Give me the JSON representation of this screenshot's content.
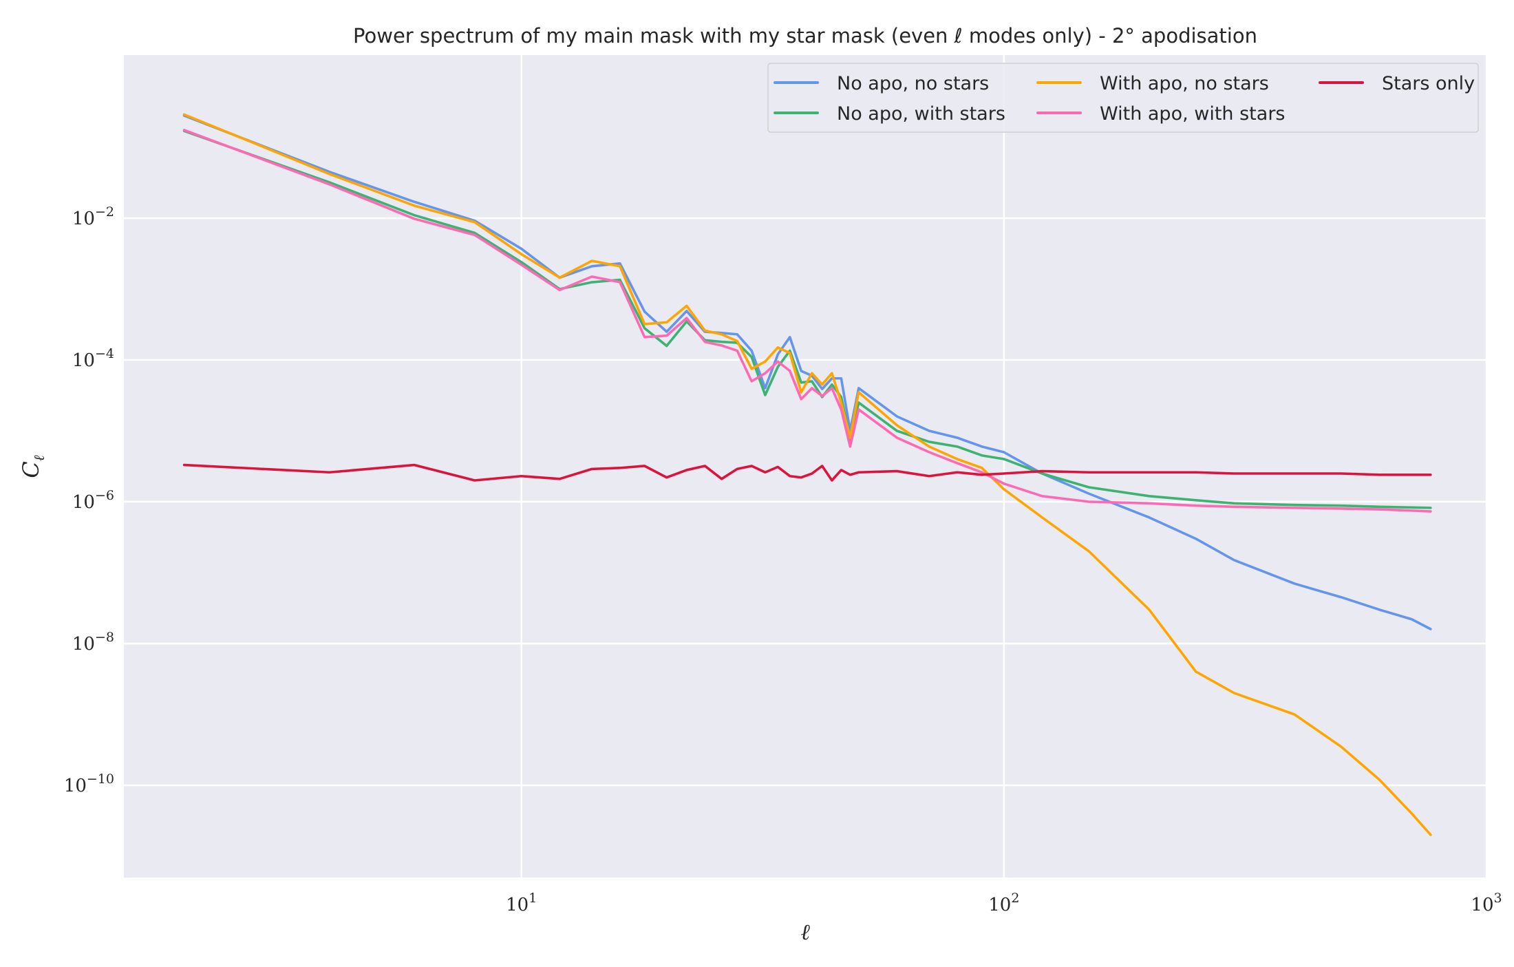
{
  "chart_data": {
    "type": "line",
    "title": "Power spectrum of my main mask with my star mask (even ℓ modes only) - 2° apodisation",
    "xlabel": "ℓ",
    "ylabel": "C_ℓ",
    "xscale": "log",
    "yscale": "log",
    "xlim": [
      1.5,
      1000
    ],
    "ylim": [
      5e-12,
      2
    ],
    "grid": true,
    "legend_position": "top-right",
    "x_ticks": [
      {
        "value": 10,
        "base": "10",
        "exp": "1"
      },
      {
        "value": 100,
        "base": "10",
        "exp": "2"
      },
      {
        "value": 1000,
        "base": "10",
        "exp": "3"
      }
    ],
    "y_ticks": [
      {
        "value": 0.01,
        "base": "10",
        "exp": "−2"
      },
      {
        "value": 0.0001,
        "base": "10",
        "exp": "−4"
      },
      {
        "value": 1e-06,
        "base": "10",
        "exp": "−6"
      },
      {
        "value": 1e-08,
        "base": "10",
        "exp": "−8"
      },
      {
        "value": 1e-10,
        "base": "10",
        "exp": "−10"
      }
    ],
    "x": [
      2,
      4,
      6,
      8,
      10,
      12,
      14,
      16,
      18,
      20,
      22,
      24,
      26,
      28,
      30,
      32,
      34,
      36,
      38,
      40,
      42,
      44,
      46,
      48,
      50,
      60,
      70,
      80,
      90,
      100,
      120,
      150,
      200,
      250,
      300,
      400,
      500,
      600,
      700,
      766
    ],
    "series": [
      {
        "name": "No apo, no stars",
        "color": "#6495ED",
        "values": [
          0.28,
          0.045,
          0.017,
          0.0092,
          0.0037,
          0.00145,
          0.0021,
          0.0023,
          0.00048,
          0.00025,
          0.00049,
          0.00025,
          0.00024,
          0.00023,
          0.000135,
          4e-05,
          0.00012,
          0.00021,
          7e-05,
          6e-05,
          3.9e-05,
          5.5e-05,
          5.5e-05,
          1e-05,
          4e-05,
          1.6e-05,
          1e-05,
          8e-06,
          6e-06,
          5e-06,
          2.5e-06,
          1.3e-06,
          6e-07,
          3e-07,
          1.5e-07,
          7e-08,
          4.5e-08,
          3e-08,
          2.2e-08,
          1.6e-08
        ]
      },
      {
        "name": "No apo, with stars",
        "color": "#3CB371",
        "values": [
          0.17,
          0.032,
          0.011,
          0.0062,
          0.0024,
          0.001,
          0.00125,
          0.00135,
          0.00028,
          0.000158,
          0.00035,
          0.00019,
          0.00018,
          0.000175,
          0.00011,
          3.2e-05,
          8e-05,
          0.000135,
          4.8e-05,
          5e-05,
          3e-05,
          4.5e-05,
          3e-05,
          7.5e-06,
          2.5e-05,
          1e-05,
          7e-06,
          6e-06,
          4.5e-06,
          4e-06,
          2.5e-06,
          1.6e-06,
          1.2e-06,
          1.05e-06,
          9.5e-07,
          9e-07,
          8.8e-07,
          8.5e-07,
          8.3e-07,
          8.2e-07
        ]
      },
      {
        "name": "With apo, no stars",
        "color": "#FFA500",
        "values": [
          0.29,
          0.042,
          0.015,
          0.0088,
          0.0031,
          0.00145,
          0.0025,
          0.0021,
          0.00032,
          0.00034,
          0.00058,
          0.00026,
          0.00023,
          0.000185,
          7.5e-05,
          9.5e-05,
          0.00015,
          0.000125,
          3.5e-05,
          6.5e-05,
          4.5e-05,
          6.5e-05,
          2.5e-05,
          8e-06,
          3.5e-05,
          1.2e-05,
          6e-06,
          4e-06,
          3e-06,
          1.5e-06,
          6e-07,
          2e-07,
          3e-08,
          4e-09,
          2e-09,
          1e-09,
          3.5e-10,
          1.2e-10,
          4e-11,
          2e-11
        ]
      },
      {
        "name": "With apo, with stars",
        "color": "#FF69B4",
        "values": [
          0.175,
          0.03,
          0.0098,
          0.0058,
          0.0022,
          0.00097,
          0.0015,
          0.00125,
          0.00021,
          0.00022,
          0.00039,
          0.00018,
          0.00016,
          0.000135,
          5e-05,
          6.5e-05,
          9.5e-05,
          7e-05,
          2.8e-05,
          4e-05,
          3.1e-05,
          4e-05,
          2e-05,
          6e-06,
          2e-05,
          8e-06,
          5e-06,
          3.5e-06,
          2.6e-06,
          1.8e-06,
          1.2e-06,
          1e-06,
          9.5e-07,
          8.8e-07,
          8.5e-07,
          8.2e-07,
          8e-07,
          7.8e-07,
          7.5e-07,
          7.3e-07
        ]
      },
      {
        "name": "Stars only",
        "color": "#DC143C",
        "values": [
          3.3e-06,
          2.6e-06,
          3.3e-06,
          2e-06,
          2.3e-06,
          2.1e-06,
          2.9e-06,
          3e-06,
          3.2e-06,
          2.2e-06,
          2.8e-06,
          3.2e-06,
          2.1e-06,
          2.9e-06,
          3.2e-06,
          2.6e-06,
          3.1e-06,
          2.3e-06,
          2.2e-06,
          2.5e-06,
          3.2e-06,
          2e-06,
          2.8e-06,
          2.4e-06,
          2.6e-06,
          2.7e-06,
          2.3e-06,
          2.6e-06,
          2.4e-06,
          2.5e-06,
          2.7e-06,
          2.6e-06,
          2.6e-06,
          2.6e-06,
          2.5e-06,
          2.5e-06,
          2.5e-06,
          2.4e-06,
          2.4e-06,
          2.4e-06
        ]
      }
    ]
  }
}
